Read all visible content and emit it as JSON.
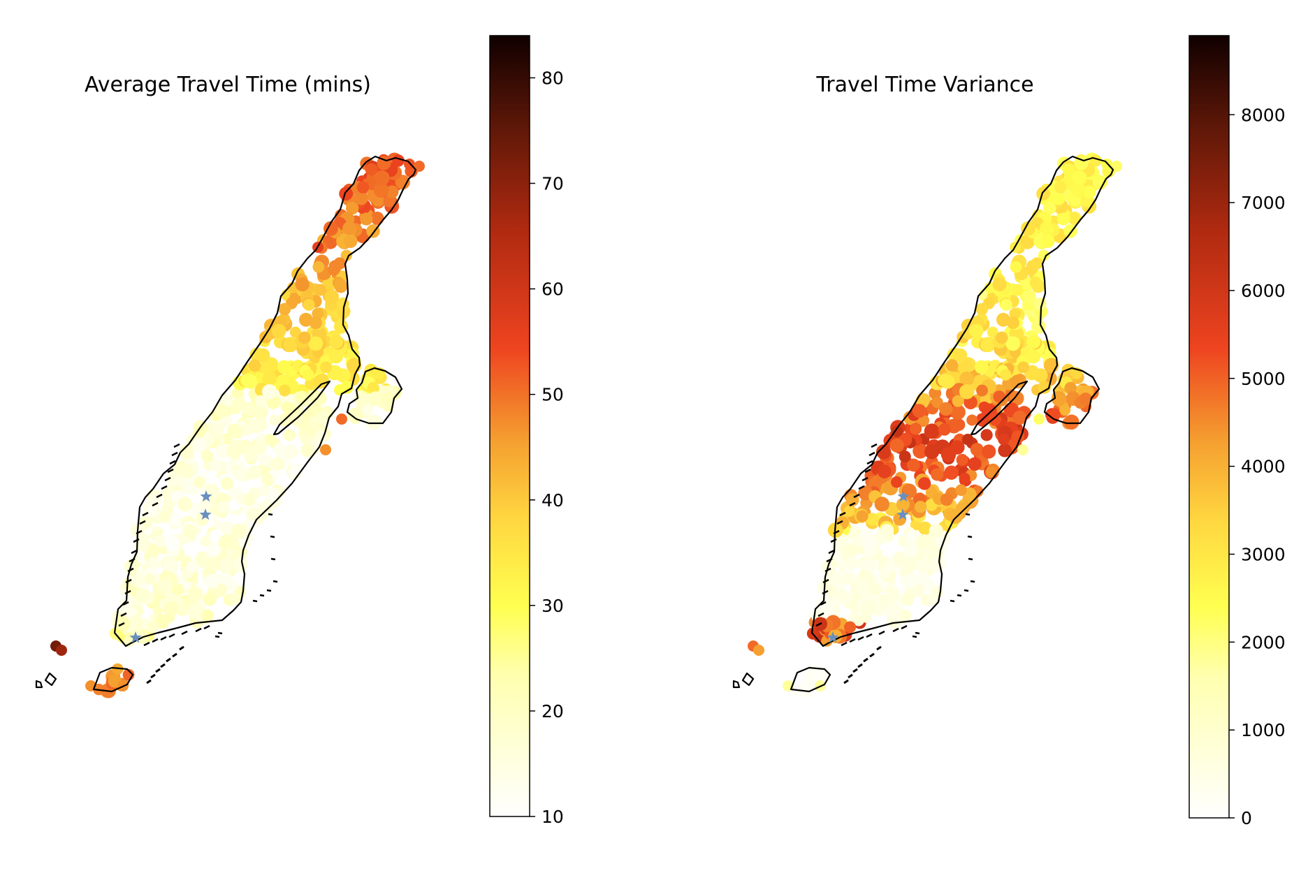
{
  "figure": {
    "panels": [
      {
        "id": "avg",
        "title": "Average Travel Time (mins)",
        "colorbar": {
          "min": 10,
          "max": 84,
          "ticks": [
            "10",
            "20",
            "30",
            "40",
            "50",
            "60",
            "70",
            "80"
          ],
          "tick_values": [
            10,
            20,
            30,
            40,
            50,
            60,
            70,
            80
          ]
        }
      },
      {
        "id": "var",
        "title": "Travel Time Variance",
        "colorbar": {
          "min": 0,
          "max": 8900,
          "ticks": [
            "0",
            "1000",
            "2000",
            "3000",
            "4000",
            "5000",
            "6000",
            "7000",
            "8000"
          ],
          "tick_values": [
            0,
            1000,
            2000,
            3000,
            4000,
            5000,
            6000,
            7000,
            8000
          ]
        }
      }
    ],
    "colormap": "afmhot_r",
    "colormap_stops": [
      "#ffffff",
      "#ffff80",
      "#ffd740",
      "#f5a030",
      "#ee4420",
      "#c02a10",
      "#701808",
      "#100000"
    ],
    "marker_color": "#6a8fbf",
    "marker_symbol": "star",
    "outline_color": "#000000"
  }
}
